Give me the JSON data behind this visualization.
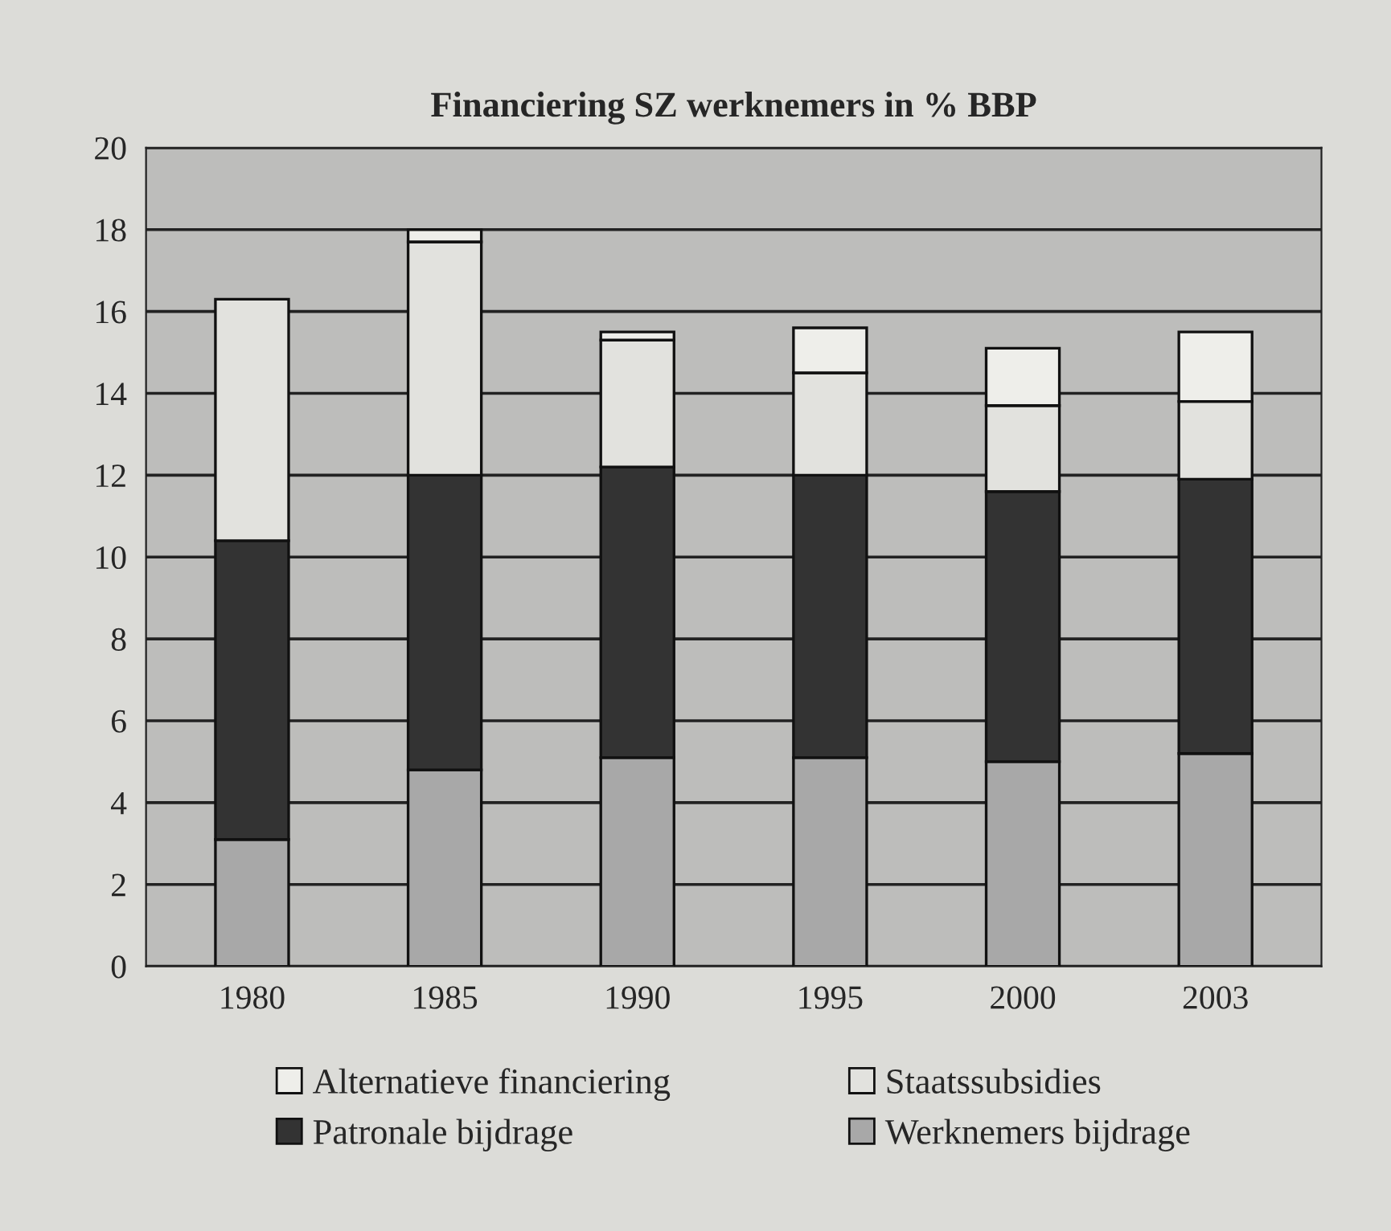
{
  "chart_data": {
    "type": "bar",
    "title": "Financiering SZ werknemers in % BBP",
    "stacked": true,
    "categories": [
      "1980",
      "1985",
      "1990",
      "1995",
      "2000",
      "2003"
    ],
    "series": [
      {
        "name": "Werknemers bijdrage",
        "color": "#a8a8a8",
        "values": [
          3.1,
          4.8,
          5.1,
          5.1,
          5.0,
          5.2
        ]
      },
      {
        "name": "Patronale bijdrage",
        "color": "#333333",
        "values": [
          7.3,
          7.2,
          7.1,
          6.9,
          6.6,
          6.7
        ]
      },
      {
        "name": "Staatssubsidies",
        "color": "#e2e2de",
        "values": [
          5.9,
          5.7,
          3.1,
          2.5,
          2.1,
          1.9
        ]
      },
      {
        "name": "Alternatieve financiering",
        "color": "#eeeeea",
        "values": [
          null,
          0.3,
          0.2,
          1.1,
          1.4,
          1.7
        ]
      }
    ],
    "ylim": [
      0,
      20
    ],
    "yticks": [
      0,
      2,
      4,
      6,
      8,
      10,
      12,
      14,
      16,
      18,
      20
    ],
    "grid": "y",
    "legend": "bottom"
  }
}
